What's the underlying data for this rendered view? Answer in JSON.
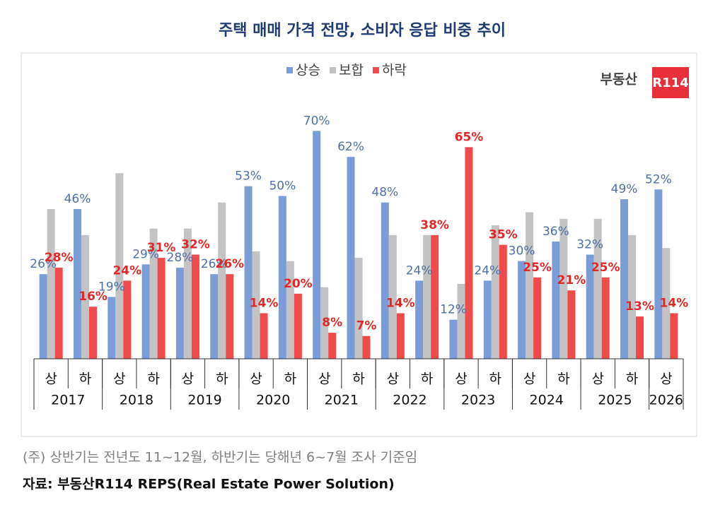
{
  "chart_data": {
    "type": "bar",
    "title": "주택 매매 가격 전망, 소비자 응답 비중 추이",
    "categories": [
      "상",
      "하",
      "상",
      "하",
      "상",
      "하",
      "상",
      "하",
      "상",
      "하",
      "상",
      "하",
      "상",
      "하",
      "상",
      "하",
      "상",
      "하",
      "상"
    ],
    "category_groups": [
      {
        "label": "2017",
        "span": 2
      },
      {
        "label": "2018",
        "span": 2
      },
      {
        "label": "2019",
        "span": 2
      },
      {
        "label": "2020",
        "span": 2
      },
      {
        "label": "2021",
        "span": 2
      },
      {
        "label": "2022",
        "span": 2
      },
      {
        "label": "2023",
        "span": 2
      },
      {
        "label": "2024",
        "span": 2
      },
      {
        "label": "2025",
        "span": 2
      },
      {
        "label": "2026",
        "span": 1
      }
    ],
    "series": [
      {
        "name": "상승",
        "color": "#7b9cd6",
        "label_color": "#4f6fa6",
        "values": [
          26,
          46,
          19,
          29,
          28,
          26,
          53,
          50,
          70,
          62,
          48,
          24,
          12,
          24,
          30,
          36,
          32,
          49,
          52
        ],
        "value_labels": [
          "26%",
          "46%",
          "19%",
          "29%",
          "28%",
          "26%",
          "53%",
          "50%",
          "70%",
          "62%",
          "48%",
          "24%",
          "12%",
          "24%",
          "30%",
          "36%",
          "32%",
          "49%",
          "52%"
        ]
      },
      {
        "name": "보합",
        "color": "#c3c3c3",
        "values": [
          46,
          38,
          57,
          40,
          40,
          48,
          33,
          30,
          22,
          31,
          38,
          38,
          23,
          41,
          45,
          43,
          43,
          38,
          34
        ]
      },
      {
        "name": "하락",
        "color": "#f04a4a",
        "label_color": "#e02828",
        "values": [
          28,
          16,
          24,
          31,
          32,
          26,
          14,
          20,
          8,
          7,
          14,
          38,
          65,
          35,
          25,
          21,
          25,
          13,
          14
        ],
        "value_labels": [
          "28%",
          "16%",
          "24%",
          "31%",
          "32%",
          "26%",
          "14%",
          "20%",
          "8%",
          "7%",
          "14%",
          "38%",
          "65%",
          "35%",
          "25%",
          "21%",
          "25%",
          "13%",
          "14%"
        ]
      }
    ],
    "logo": {
      "text": "부동산",
      "badge": "R114"
    },
    "notes": [
      "(주) 상반기는 전년도 11~12월, 하반기는 당해년 6~7월 조사 기준임",
      "자료: 부동산R114 REPS(Real Estate Power Solution)"
    ]
  }
}
